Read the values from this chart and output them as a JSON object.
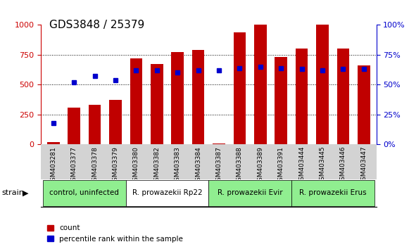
{
  "title": "GDS3848 / 25379",
  "samples": [
    "GSM403281",
    "GSM403377",
    "GSM403378",
    "GSM403379",
    "GSM403380",
    "GSM403382",
    "GSM403383",
    "GSM403384",
    "GSM403387",
    "GSM403388",
    "GSM403389",
    "GSM403391",
    "GSM403444",
    "GSM403445",
    "GSM403446",
    "GSM403447"
  ],
  "counts": [
    20,
    310,
    330,
    370,
    720,
    670,
    775,
    790,
    10,
    940,
    1000,
    730,
    800,
    1000,
    800,
    660
  ],
  "percentile_ranks": [
    18,
    52,
    57,
    54,
    62,
    62,
    60,
    62,
    62,
    64,
    65,
    64,
    63,
    62,
    63,
    63
  ],
  "groups": [
    {
      "label": "control, uninfected",
      "start": 0,
      "end": 4,
      "color": "#90EE90"
    },
    {
      "label": "R. prowazekii Rp22",
      "start": 4,
      "end": 8,
      "color": "#90EE90"
    },
    {
      "label": "R. prowazekii Evir",
      "start": 8,
      "end": 12,
      "color": "#90EE90"
    },
    {
      "label": "R. prowazekii Erus",
      "start": 12,
      "end": 16,
      "color": "#90EE90"
    }
  ],
  "bar_color": "#C00000",
  "dot_color": "#0000CC",
  "ylim_left": [
    0,
    1000
  ],
  "ylim_right": [
    0,
    100
  ],
  "yticks_left": [
    0,
    250,
    500,
    750,
    1000
  ],
  "yticks_right": [
    0,
    25,
    50,
    75,
    100
  ],
  "left_axis_color": "#CC0000",
  "right_axis_color": "#0000CC",
  "bg_color": "#F0F0F0",
  "plot_bg_color": "#FFFFFF",
  "grid_color": "#000000",
  "strain_label": "strain",
  "legend_count": "count",
  "legend_percentile": "percentile rank within the sample"
}
